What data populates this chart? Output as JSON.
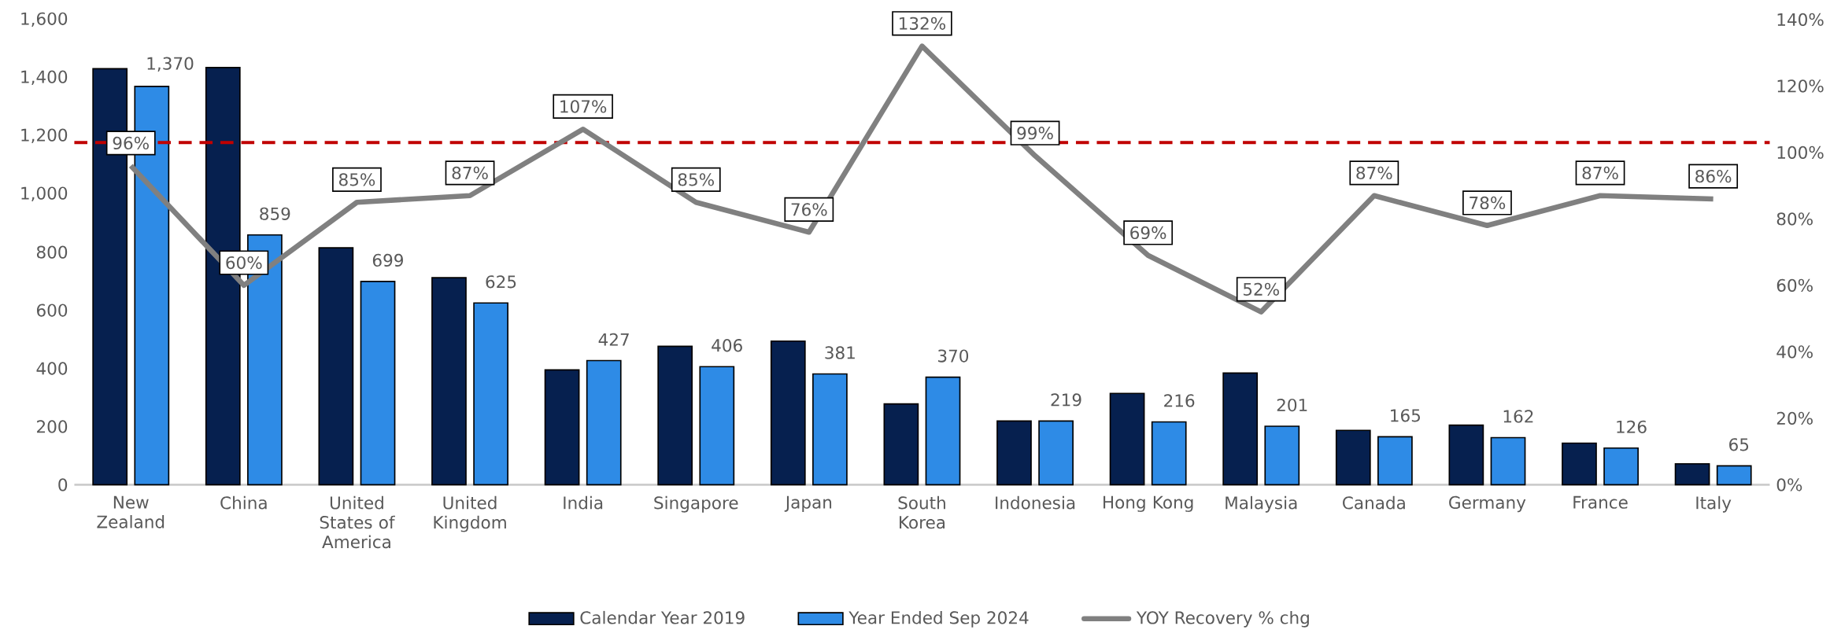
{
  "chart_data": {
    "type": "bar",
    "categories": [
      "New Zealand",
      "China",
      "United States of America",
      "United Kingdom",
      "India",
      "Singapore",
      "Japan",
      "South Korea",
      "Indonesia",
      "Hong Kong",
      "Malaysia",
      "Canada",
      "Germany",
      "France",
      "Italy"
    ],
    "series": [
      {
        "name": "Calendar Year 2019",
        "color": "#06204f",
        "values": [
          1431,
          1435,
          815,
          712,
          395,
          476,
          494,
          278,
          219,
          314,
          384,
          187,
          205,
          143,
          72
        ]
      },
      {
        "name": "Year Ended Sep 2024",
        "color": "#2e8be6",
        "values": [
          1370,
          859,
          699,
          625,
          427,
          406,
          381,
          370,
          219,
          216,
          201,
          165,
          162,
          126,
          65
        ],
        "value_labels": [
          "1,370",
          "859",
          "699",
          "625",
          "427",
          "406",
          "381",
          "370",
          "219",
          "216",
          "201",
          "165",
          "162",
          "126",
          "65"
        ]
      },
      {
        "name": "YOY Recovery % chg",
        "type": "line",
        "axis": "y2",
        "color": "#808080",
        "values": [
          96,
          60,
          85,
          87,
          107,
          85,
          76,
          132,
          99,
          69,
          52,
          87,
          78,
          87,
          86
        ],
        "value_labels": [
          "96%",
          "60%",
          "85%",
          "87%",
          "107%",
          "85%",
          "76%",
          "132%",
          "99%",
          "69%",
          "52%",
          "87%",
          "78%",
          "87%",
          "86%"
        ]
      }
    ],
    "ylim": [
      0,
      1600
    ],
    "yticks": [
      0,
      {
        "value": 200,
        "label": "200"
      },
      {
        "value": 400,
        "label": "400"
      },
      {
        "value": 600,
        "label": "600"
      },
      {
        "value": 800,
        "label": "800"
      },
      {
        "value": 1000,
        "label": "1,000"
      },
      {
        "value": 1200,
        "label": "1,200"
      },
      {
        "value": 1400,
        "label": "1,400"
      },
      {
        "value": 1600,
        "label": "1,600"
      }
    ],
    "y2lim": [
      0,
      140
    ],
    "y2ticks": [
      {
        "value": 0,
        "label": "0%"
      },
      {
        "value": 20,
        "label": "20%"
      },
      {
        "value": 40,
        "label": "40%"
      },
      {
        "value": 60,
        "label": "60%"
      },
      {
        "value": 80,
        "label": "80%"
      },
      {
        "value": 100,
        "label": "100%"
      },
      {
        "value": 120,
        "label": "120%"
      },
      {
        "value": 140,
        "label": "140%"
      }
    ],
    "ref_lines": [
      {
        "axis": "y2",
        "value": 103,
        "color": "#c00000",
        "line_style": "dashed"
      }
    ],
    "legend": "bottom"
  }
}
